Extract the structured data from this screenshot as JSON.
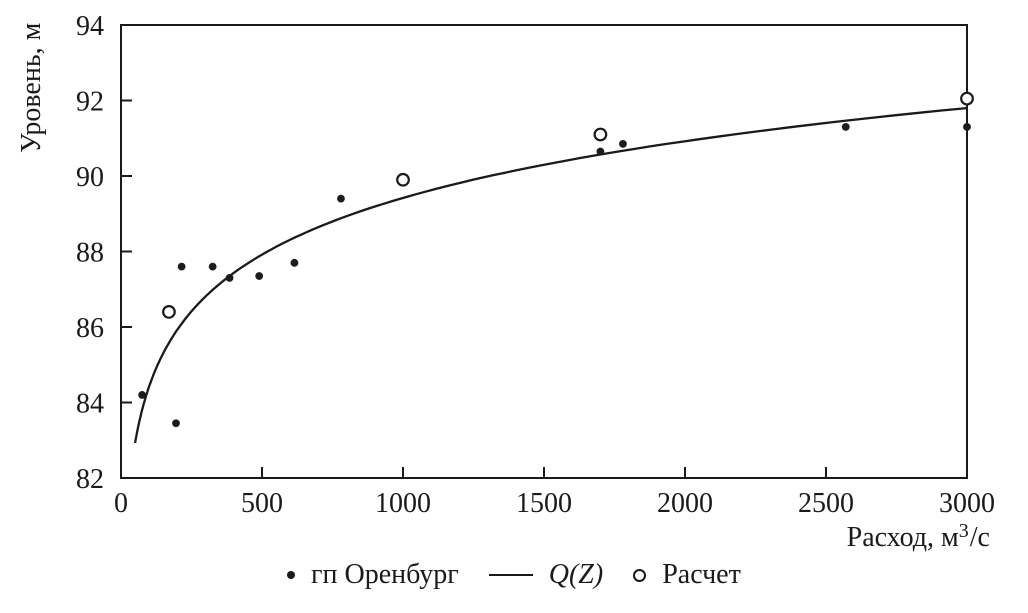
{
  "chart_data": {
    "type": "scatter",
    "title": "",
    "xlabel": "Расход, м³/с",
    "xlabel_parts": {
      "prefix": "Расход, м",
      "sup": "3",
      "suffix": "/с"
    },
    "ylabel": "Уровень, м",
    "xlim": [
      0,
      3000
    ],
    "ylim": [
      82,
      94
    ],
    "xticks": [
      0,
      500,
      1000,
      1500,
      2000,
      2500,
      3000
    ],
    "yticks": [
      82,
      84,
      86,
      88,
      90,
      92,
      94
    ],
    "grid": false,
    "legend_position": "bottom-center",
    "colors": {
      "foreground": "#1a1a1a",
      "background": "#ffffff"
    },
    "series": [
      {
        "name": "гп Оренбург",
        "marker": "filled-dot",
        "points": [
          [
            75,
            84.2
          ],
          [
            195,
            83.45
          ],
          [
            215,
            87.6
          ],
          [
            325,
            87.6
          ],
          [
            385,
            87.3
          ],
          [
            490,
            87.35
          ],
          [
            615,
            87.7
          ],
          [
            780,
            89.4
          ],
          [
            1700,
            90.65
          ],
          [
            1780,
            90.85
          ],
          [
            2570,
            91.3
          ],
          [
            3000,
            91.3
          ]
        ]
      },
      {
        "name": "Q(Z)",
        "marker": "line",
        "curve": {
          "model": "H = a + b·ln(Q)",
          "a": 74.45,
          "b": 2.167,
          "q_min": 50,
          "q_max": 3000
        }
      },
      {
        "name": "Расчет",
        "marker": "open-circle",
        "points": [
          [
            170,
            86.4
          ],
          [
            1000,
            89.9
          ],
          [
            1700,
            91.1
          ],
          [
            3000,
            92.05
          ]
        ]
      }
    ]
  }
}
